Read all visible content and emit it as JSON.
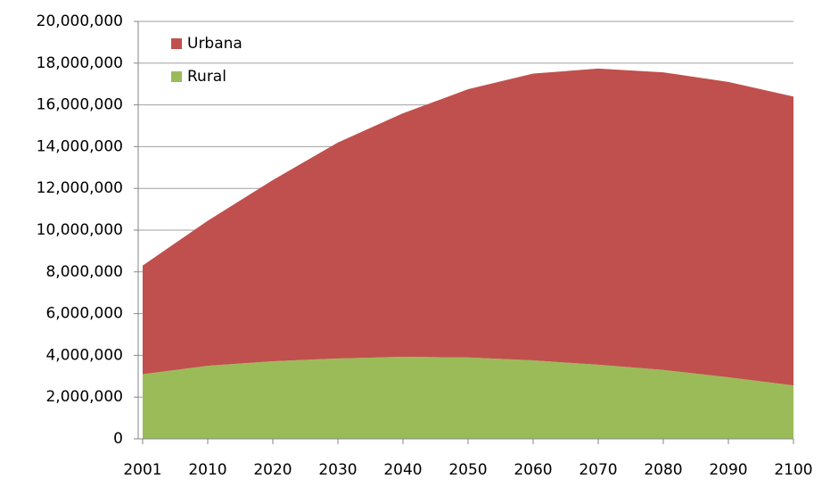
{
  "chart_data": {
    "type": "stacked-area",
    "categories": [
      "2001",
      "2010",
      "2020",
      "2030",
      "2040",
      "2050",
      "2060",
      "2070",
      "2080",
      "2090",
      "2100"
    ],
    "series": [
      {
        "name": "Rural",
        "color": "#9bbb59",
        "values": [
          3100000,
          3500000,
          3720000,
          3850000,
          3930000,
          3900000,
          3760000,
          3550000,
          3300000,
          2950000,
          2560000
        ]
      },
      {
        "name": "Urbana",
        "color": "#c0504d",
        "values": [
          5200000,
          6950000,
          8680000,
          10350000,
          11670000,
          12850000,
          13740000,
          14190000,
          14260000,
          14150000,
          13840000
        ]
      }
    ],
    "ylim": [
      0,
      20000000
    ],
    "yticks": [
      0,
      {
        "value": 2000000,
        "label": "2,000,000"
      },
      {
        "value": 4000000,
        "label": "4,000,000"
      },
      {
        "value": 6000000,
        "label": "6,000,000"
      },
      {
        "value": 8000000,
        "label": "8,000,000"
      },
      {
        "value": 10000000,
        "label": "10,000,000"
      },
      {
        "value": 12000000,
        "label": "12,000,000"
      },
      {
        "value": 14000000,
        "label": "14,000,000"
      },
      {
        "value": 16000000,
        "label": "16,000,000"
      },
      {
        "value": 18000000,
        "label": "18,000,000"
      },
      {
        "value": 20000000,
        "label": "20,000,000"
      }
    ],
    "grid": true,
    "legend": "top-left"
  }
}
